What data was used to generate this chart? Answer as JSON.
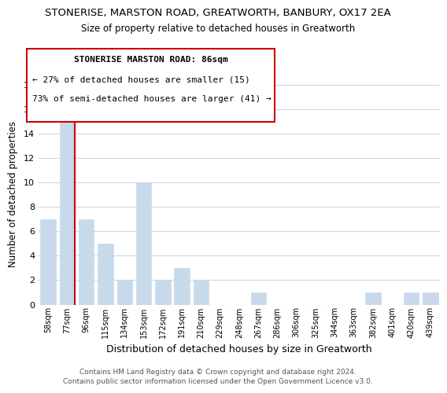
{
  "title": "STONERISE, MARSTON ROAD, GREATWORTH, BANBURY, OX17 2EA",
  "subtitle": "Size of property relative to detached houses in Greatworth",
  "xlabel": "Distribution of detached houses by size in Greatworth",
  "ylabel": "Number of detached properties",
  "categories": [
    "58sqm",
    "77sqm",
    "96sqm",
    "115sqm",
    "134sqm",
    "153sqm",
    "172sqm",
    "191sqm",
    "210sqm",
    "229sqm",
    "248sqm",
    "267sqm",
    "286sqm",
    "306sqm",
    "325sqm",
    "344sqm",
    "363sqm",
    "382sqm",
    "401sqm",
    "420sqm",
    "439sqm"
  ],
  "values": [
    7,
    15,
    7,
    5,
    2,
    10,
    2,
    3,
    2,
    0,
    0,
    1,
    0,
    0,
    0,
    0,
    0,
    1,
    0,
    1,
    1
  ],
  "bar_color": "#c8d9eb",
  "highlight_bar_index": 1,
  "highlight_line_color": "#cc0000",
  "ylim": [
    0,
    18
  ],
  "yticks": [
    0,
    2,
    4,
    6,
    8,
    10,
    12,
    14,
    16,
    18
  ],
  "annotation_title": "STONERISE MARSTON ROAD: 86sqm",
  "annotation_line1": "← 27% of detached houses are smaller (15)",
  "annotation_line2": "73% of semi-detached houses are larger (41) →",
  "annotation_box_color": "#ffffff",
  "annotation_box_edge": "#cc0000",
  "footer_line1": "Contains HM Land Registry data © Crown copyright and database right 2024.",
  "footer_line2": "Contains public sector information licensed under the Open Government Licence v3.0.",
  "background_color": "#ffffff",
  "grid_color": "#c8d9eb"
}
